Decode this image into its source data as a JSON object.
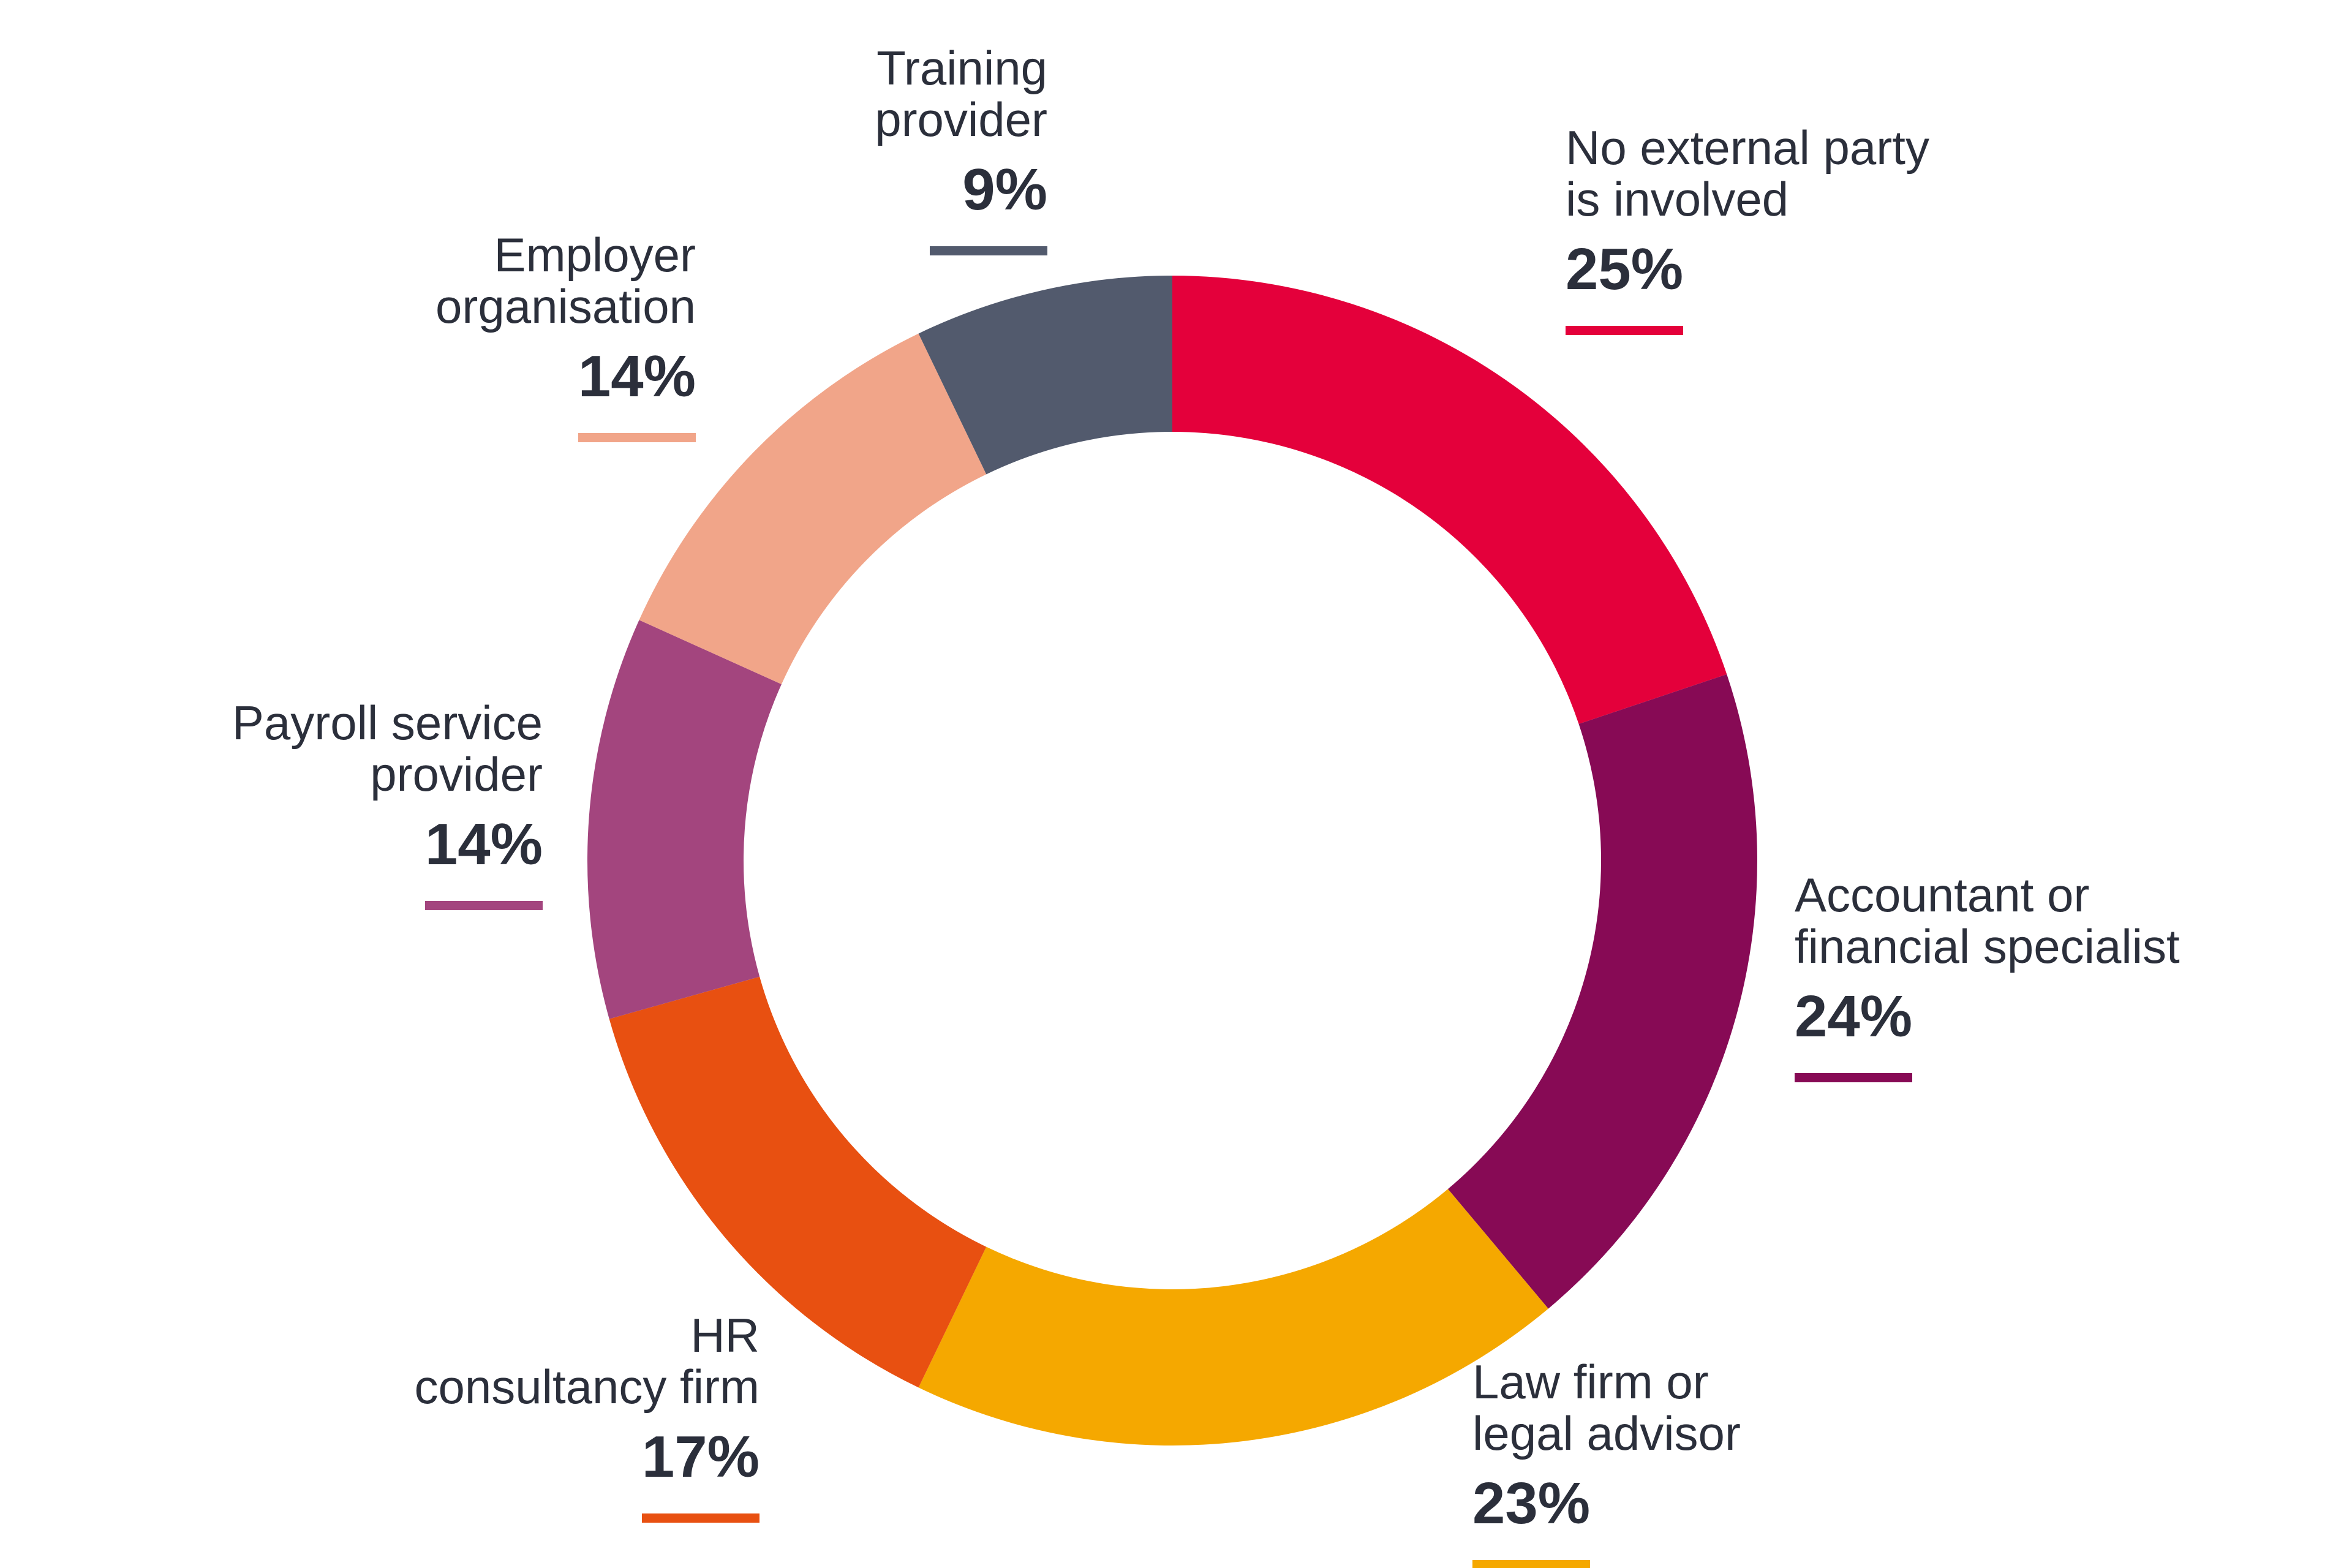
{
  "chart_data": {
    "type": "pie",
    "donut": true,
    "title": "",
    "series": [
      {
        "name": "No external party is involved",
        "label_lines": [
          "No external party",
          "is involved"
        ],
        "value": 25,
        "display": "25%",
        "color": "#e4003b"
      },
      {
        "name": "Accountant or financial specialist",
        "label_lines": [
          "Accountant or",
          "financial specialist"
        ],
        "value": 24,
        "display": "24%",
        "color": "#870a55"
      },
      {
        "name": "Law firm or legal advisor",
        "label_lines": [
          "Law firm or",
          "legal advisor"
        ],
        "value": 23,
        "display": "23%",
        "color": "#f5a800"
      },
      {
        "name": "HR consultancy firm",
        "label_lines": [
          "HR",
          "consultancy firm"
        ],
        "value": 17,
        "display": "17%",
        "color": "#e85011"
      },
      {
        "name": "Payroll service provider",
        "label_lines": [
          "Payroll service",
          "provider"
        ],
        "value": 14,
        "display": "14%",
        "color": "#a3457e"
      },
      {
        "name": "Employer organisation",
        "label_lines": [
          "Employer",
          "organisation"
        ],
        "value": 14,
        "display": "14%",
        "color": "#f1a589"
      },
      {
        "name": "Training provider",
        "label_lines": [
          "Training",
          "provider"
        ],
        "value": 9,
        "display": "9%",
        "color": "#525a6d"
      }
    ]
  }
}
